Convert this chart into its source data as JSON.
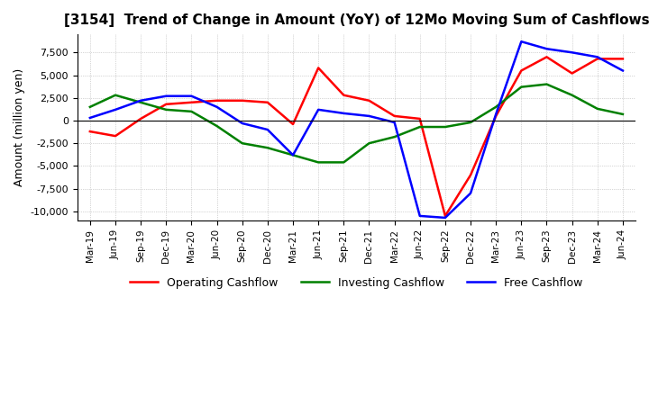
{
  "title": "[3154]  Trend of Change in Amount (YoY) of 12Mo Moving Sum of Cashflows",
  "ylabel": "Amount (million yen)",
  "ylim": [
    -11000,
    9500
  ],
  "yticks": [
    -10000,
    -7500,
    -5000,
    -2500,
    0,
    2500,
    5000,
    7500
  ],
  "x_labels": [
    "Mar-19",
    "Jun-19",
    "Sep-19",
    "Dec-19",
    "Mar-20",
    "Jun-20",
    "Sep-20",
    "Dec-20",
    "Mar-21",
    "Jun-21",
    "Sep-21",
    "Dec-21",
    "Mar-22",
    "Jun-22",
    "Sep-22",
    "Dec-22",
    "Mar-23",
    "Jun-23",
    "Sep-23",
    "Dec-23",
    "Mar-24",
    "Jun-24"
  ],
  "operating": [
    -1200,
    -1700,
    200,
    1800,
    2000,
    2200,
    2200,
    2000,
    -400,
    5800,
    2800,
    2200,
    500,
    200,
    -10500,
    -6000,
    500,
    5500,
    7000,
    5200,
    6800,
    6800
  ],
  "investing": [
    1500,
    2800,
    2000,
    1200,
    1000,
    -600,
    -2500,
    -3000,
    -3800,
    -4600,
    -4600,
    -2500,
    -1800,
    -700,
    -700,
    -200,
    1500,
    3700,
    4000,
    2800,
    1300,
    700
  ],
  "free": [
    300,
    1200,
    2200,
    2700,
    2700,
    1500,
    -300,
    -1000,
    -3800,
    1200,
    800,
    500,
    -200,
    -10500,
    -10700,
    -8000,
    700,
    8700,
    7900,
    7500,
    7000,
    5500
  ],
  "op_color": "#ff0000",
  "inv_color": "#008000",
  "free_color": "#0000ff",
  "bg_color": "#ffffff",
  "grid_color": "#b0b0b0"
}
